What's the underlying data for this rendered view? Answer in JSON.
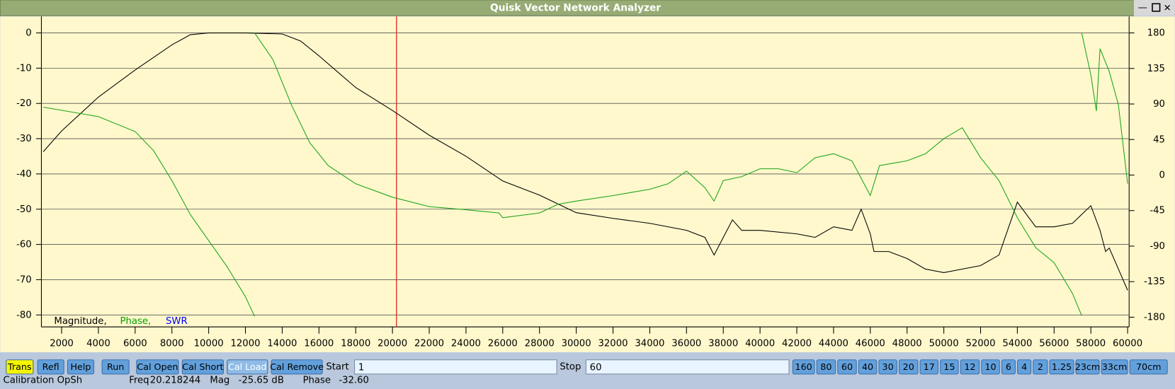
{
  "window": {
    "title": "Quisk Vector Network Analyzer"
  },
  "chart_data": {
    "type": "line",
    "xlim": [
      1000,
      60000
    ],
    "xticks": [
      2000,
      4000,
      6000,
      8000,
      10000,
      12000,
      14000,
      16000,
      18000,
      20000,
      22000,
      24000,
      26000,
      28000,
      30000,
      32000,
      34000,
      36000,
      38000,
      40000,
      42000,
      44000,
      46000,
      48000,
      50000,
      52000,
      54000,
      56000,
      58000,
      60000
    ],
    "ylim": [
      -80,
      0
    ],
    "yticks": [
      0,
      -10,
      -20,
      -30,
      -40,
      -50,
      -60,
      -70,
      -80
    ],
    "y2lim": [
      -180,
      180
    ],
    "y2ticks": [
      180,
      135,
      90,
      45,
      0,
      -45,
      -90,
      -135,
      -180
    ],
    "grid": true,
    "cursor": 20218,
    "legend": [
      {
        "text": "Magnitude,",
        "color": "#000000"
      },
      {
        "text": "Phase,",
        "color": "#00a000"
      },
      {
        "text": "SWR",
        "color": "#0000ff"
      }
    ],
    "series": [
      {
        "name": "Magnitude",
        "color": "#000000",
        "x": [
          1000,
          2000,
          4000,
          6000,
          8000,
          9000,
          10000,
          12000,
          14000,
          15000,
          16000,
          17000,
          18000,
          20000,
          22000,
          24000,
          26000,
          28000,
          30000,
          32000,
          34000,
          36000,
          37000,
          37500,
          38000,
          38500,
          39000,
          40000,
          42000,
          43000,
          44000,
          45000,
          45500,
          46000,
          46200,
          47000,
          48000,
          49000,
          50000,
          52000,
          53000,
          54000,
          55000,
          56000,
          57000,
          58000,
          58500,
          58800,
          59000,
          60000
        ],
        "values": [
          -33.7,
          -27.8,
          -18.2,
          -10.5,
          -3.4,
          -0.5,
          0,
          0,
          -0.3,
          -2.3,
          -6.5,
          -11,
          -15.5,
          -22,
          -29,
          -35,
          -42,
          -46,
          -51,
          -52.6,
          -54,
          -56,
          -58,
          -63,
          -58,
          -53,
          -56,
          -56,
          -57,
          -58,
          -55,
          -56,
          -50,
          -57,
          -62,
          -62,
          -64,
          -67,
          -68,
          -66,
          -63,
          -48,
          -55,
          -55,
          -54,
          -49,
          -56,
          -62,
          -61,
          -73
        ]
      },
      {
        "name": "Phase",
        "color": "#1aa31a",
        "axis": "y2",
        "x": [
          1000,
          4000,
          6000,
          7000,
          8000,
          9000,
          10000,
          11000,
          12000,
          12500,
          null,
          12500,
          13500,
          14500,
          15500,
          16500,
          18000,
          20000,
          22000,
          24000,
          25800,
          26000,
          28000,
          29000,
          30000,
          32000,
          34000,
          35000,
          36000,
          37000,
          37500,
          38000,
          39000,
          40000,
          41000,
          42000,
          43000,
          44000,
          45000,
          46000,
          46500,
          48000,
          49000,
          50000,
          51000,
          51500,
          52000,
          53000,
          54000,
          55000,
          56000,
          57000,
          57500,
          null,
          57500,
          58000,
          58300,
          58500,
          59000,
          59500,
          60000
        ],
        "values": [
          86,
          74,
          55,
          31,
          -7,
          -50,
          -83,
          -116,
          -154,
          -179,
          null,
          180,
          146,
          89,
          41,
          12,
          -11,
          -28,
          -40,
          -44,
          -48,
          -54,
          -48,
          -37,
          -33,
          -26,
          -18,
          -11,
          5,
          -16,
          -33,
          -7,
          -2,
          8,
          8,
          3,
          22,
          27,
          18,
          -26,
          12,
          18,
          27,
          46,
          60,
          41,
          22,
          -7,
          -54,
          -92,
          -111,
          -150,
          -178,
          null,
          180,
          127,
          81,
          160,
          131,
          89,
          -11
        ]
      }
    ]
  },
  "toolbar": {
    "buttons": [
      "Trans",
      "Refl",
      "Help",
      "Run",
      "Cal Open",
      "Cal Short",
      "Cal Load",
      "Cal Remove"
    ],
    "start_label": "Start",
    "start_value": "1",
    "stop_label": "Stop",
    "stop_value": "60",
    "bands": [
      "160",
      "80",
      "60",
      "40",
      "30",
      "20",
      "17",
      "15",
      "12",
      "10",
      "6",
      "4",
      "2",
      "1.25",
      "23cm",
      "33cm",
      "70cm"
    ]
  },
  "status": {
    "message": "Calibration OpSh",
    "freq_label": "Freq",
    "freq_value": "20.218244",
    "mag_label": "Mag",
    "mag_value": "-25.65 dB",
    "phase_label": "Phase",
    "phase_value": "-32.60"
  }
}
